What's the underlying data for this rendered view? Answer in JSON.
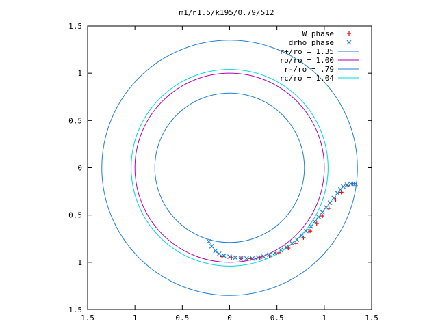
{
  "chart_data": {
    "type": "scatter",
    "title": "m1/n1.5/k195/0.79/512",
    "xlabel": "",
    "ylabel": "",
    "xlim": [
      -1.5,
      1.5
    ],
    "ylim": [
      -1.5,
      1.5
    ],
    "x_ticks": [
      {
        "value": -1.5,
        "label": "1.5"
      },
      {
        "value": -1.0,
        "label": "1"
      },
      {
        "value": -0.5,
        "label": "0.5"
      },
      {
        "value": 0.0,
        "label": "0"
      },
      {
        "value": 0.5,
        "label": "0.5"
      },
      {
        "value": 1.0,
        "label": "1"
      },
      {
        "value": 1.5,
        "label": "1.5"
      }
    ],
    "y_ticks": [
      {
        "value": 1.5,
        "label": "1.5"
      },
      {
        "value": 1.0,
        "label": "1"
      },
      {
        "value": 0.5,
        "label": "0.5"
      },
      {
        "value": 0.0,
        "label": "0"
      },
      {
        "value": -0.5,
        "label": "0.5"
      },
      {
        "value": -1.0,
        "label": "1"
      },
      {
        "value": -1.5,
        "label": "1.5"
      }
    ],
    "grid": false,
    "legend_position": "top-right",
    "series": [
      {
        "name": "W phase",
        "kind": "points",
        "marker": "+",
        "color": "#ff0000",
        "x": [
          -0.08,
          0.02,
          0.12,
          0.22,
          0.32,
          0.42,
          0.52,
          0.62,
          0.7,
          0.78,
          0.85,
          0.92,
          0.98,
          1.05,
          1.12,
          1.18,
          1.25,
          1.3
        ],
        "y": [
          -0.94,
          -0.95,
          -0.96,
          -0.96,
          -0.95,
          -0.93,
          -0.9,
          -0.85,
          -0.8,
          -0.74,
          -0.67,
          -0.59,
          -0.51,
          -0.43,
          -0.34,
          -0.26,
          -0.19,
          -0.17
        ]
      },
      {
        "name": "drho phase",
        "kind": "points",
        "marker": "x",
        "color": "#1e7fd8",
        "x": [
          -0.22,
          -0.19,
          -0.15,
          -0.11,
          -0.06,
          0.0,
          0.06,
          0.12,
          0.18,
          0.24,
          0.3,
          0.36,
          0.42,
          0.48,
          0.54,
          0.6,
          0.66,
          0.71,
          0.76,
          0.81,
          0.86,
          0.9,
          0.94,
          0.98,
          1.02,
          1.06,
          1.1,
          1.14,
          1.17,
          1.2,
          1.24,
          1.28,
          1.31,
          1.33
        ],
        "y": [
          -0.78,
          -0.83,
          -0.88,
          -0.91,
          -0.93,
          -0.94,
          -0.95,
          -0.96,
          -0.96,
          -0.96,
          -0.95,
          -0.94,
          -0.92,
          -0.9,
          -0.87,
          -0.84,
          -0.8,
          -0.76,
          -0.72,
          -0.67,
          -0.62,
          -0.57,
          -0.52,
          -0.47,
          -0.42,
          -0.37,
          -0.32,
          -0.27,
          -0.23,
          -0.2,
          -0.18,
          -0.17,
          -0.17,
          -0.17
        ]
      },
      {
        "name": "r+/ro = 1.35",
        "kind": "circle",
        "r": 1.35,
        "color": "#1e7fd8"
      },
      {
        "name": "ro/ro = 1.00",
        "kind": "circle",
        "r": 1.0,
        "color": "#b000b0"
      },
      {
        "name": "r-/ro = .79",
        "kind": "circle",
        "r": 0.79,
        "color": "#1e7fd8"
      },
      {
        "name": "rc/ro = 1.04",
        "kind": "circle",
        "r": 1.04,
        "color": "#00d8d8"
      }
    ]
  }
}
